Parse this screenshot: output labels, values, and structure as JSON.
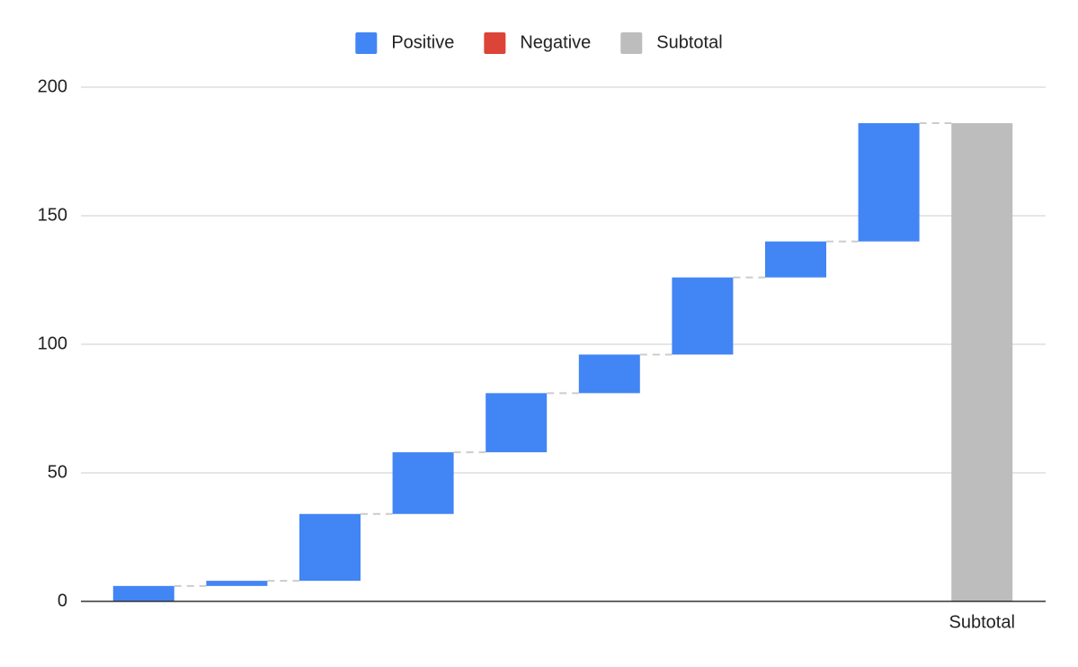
{
  "chart_data": {
    "type": "waterfall",
    "categories": [
      null,
      null,
      null,
      null,
      null,
      null,
      null,
      null,
      null,
      "Subtotal"
    ],
    "series": [
      {
        "name": "Positive",
        "color": "#4285f4",
        "values": [
          6,
          2,
          26,
          24,
          23,
          15,
          30,
          14,
          46,
          null
        ]
      },
      {
        "name": "Negative",
        "color": "#db4437",
        "values": [
          null,
          null,
          null,
          null,
          null,
          null,
          null,
          null,
          null,
          null
        ]
      },
      {
        "name": "Subtotal",
        "color": "#bdbdbd",
        "values": [
          null,
          null,
          null,
          null,
          null,
          null,
          null,
          null,
          null,
          186
        ]
      }
    ],
    "ylim": [
      0,
      200
    ],
    "yticks": [
      0,
      50,
      100,
      150,
      200
    ],
    "grid": true,
    "legend": "top"
  }
}
